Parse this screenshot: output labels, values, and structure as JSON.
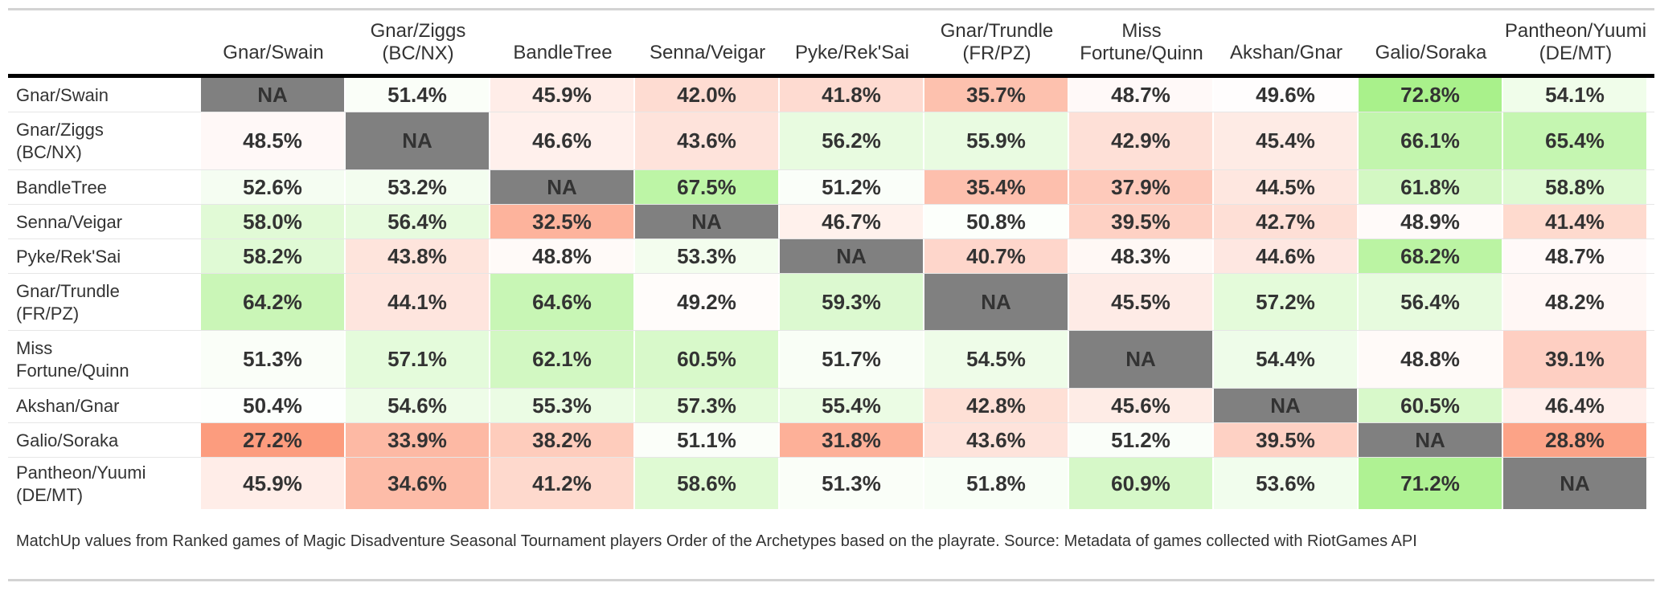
{
  "chart_data": {
    "type": "heatmap",
    "columns": [
      "Gnar/Swain",
      "Gnar/Ziggs\n(BC/NX)",
      "BandleTree",
      "Senna/Veigar",
      "Pyke/Rek'Sai",
      "Gnar/Trundle\n(FR/PZ)",
      "Miss\nFortune/Quinn",
      "Akshan/Gnar",
      "Galio/Soraka",
      "Pantheon/Yuumi\n(DE/MT)"
    ],
    "rows": [
      "Gnar/Swain",
      "Gnar/Ziggs\n(BC/NX)",
      "BandleTree",
      "Senna/Veigar",
      "Pyke/Rek'Sai",
      "Gnar/Trundle\n(FR/PZ)",
      "Miss\nFortune/Quinn",
      "Akshan/Gnar",
      "Galio/Soraka",
      "Pantheon/Yuumi\n(DE/MT)"
    ],
    "values": [
      [
        null,
        51.4,
        45.9,
        42.0,
        41.8,
        35.7,
        48.7,
        49.6,
        72.8,
        54.1
      ],
      [
        48.5,
        null,
        46.6,
        43.6,
        56.2,
        55.9,
        42.9,
        45.4,
        66.1,
        65.4
      ],
      [
        52.6,
        53.2,
        null,
        67.5,
        51.2,
        35.4,
        37.9,
        44.5,
        61.8,
        58.8
      ],
      [
        58.0,
        56.4,
        32.5,
        null,
        46.7,
        50.8,
        39.5,
        42.7,
        48.9,
        41.4
      ],
      [
        58.2,
        43.8,
        48.8,
        53.3,
        null,
        40.7,
        48.3,
        44.6,
        68.2,
        48.7
      ],
      [
        64.2,
        44.1,
        64.6,
        49.2,
        59.3,
        null,
        45.5,
        57.2,
        56.4,
        48.2
      ],
      [
        51.3,
        57.1,
        62.1,
        60.5,
        51.7,
        54.5,
        null,
        54.4,
        48.8,
        39.1
      ],
      [
        50.4,
        54.6,
        55.3,
        57.3,
        55.4,
        42.8,
        45.6,
        null,
        60.5,
        46.4
      ],
      [
        27.2,
        33.9,
        38.2,
        51.1,
        31.8,
        43.6,
        51.2,
        39.5,
        null,
        28.8
      ],
      [
        45.9,
        34.6,
        41.2,
        58.6,
        51.3,
        51.8,
        60.9,
        53.6,
        71.2,
        null
      ]
    ],
    "na_label": "NA",
    "value_suffix": "%",
    "na_color": "#808080",
    "low_color": "#fc9272",
    "mid_color": "#ffffff",
    "high_color": "#a1f080",
    "caption": "MatchUp values from Ranked games of Magic Disadventure Seasonal Tournament players Order of the Archetypes based on the playrate. Source: Metadata of games collected with RiotGames API"
  }
}
